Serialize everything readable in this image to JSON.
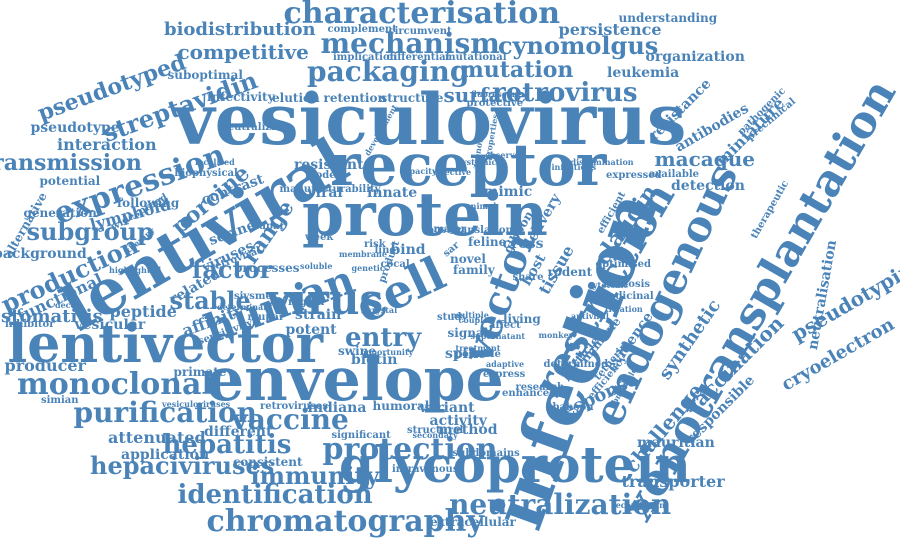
{
  "colors": {
    "word": "#4a83b8",
    "background": "#ffffff"
  },
  "words": [
    "vesiculovirus",
    "infection",
    "lentiviral",
    "protein",
    "receptor",
    "envelope",
    "lentivector",
    "glycoprotein",
    "xenotransplantation",
    "cell",
    "virus",
    "human",
    "vector",
    "endogenous",
    "restriction",
    "characterisation",
    "mechanism",
    "packaging",
    "expression",
    "monoclonal",
    "purification",
    "chromatography",
    "neutralization",
    "protection",
    "vaccine",
    "entry",
    "identification",
    "immunity",
    "hepaciviruses",
    "hepatitis",
    "transmission",
    "subgroup",
    "production",
    "stable",
    "factor",
    "range",
    "porcine",
    "streptavidin",
    "retrovirus",
    "mutation",
    "surface",
    "cynomolgus",
    "competitive",
    "biodistribution",
    "pseudotyped",
    "pseudotype",
    "interaction",
    "stomatitis",
    "functional",
    "peptide",
    "affinity",
    "vesicular",
    "producer",
    "background",
    "generation",
    "lymphoid",
    "subgroup",
    "attenuated",
    "application",
    "different",
    "consistent",
    "indiana",
    "primate",
    "viral",
    "innate",
    "mimic",
    "cross",
    "spike",
    "biotin",
    "signal",
    "activity",
    "method",
    "variant",
    "humoral",
    "transporter",
    "recombinant",
    "extracellular",
    "challenge",
    "vaccination",
    "response",
    "claudin",
    "tissue",
    "host",
    "delivery",
    "gibbon",
    "macaque",
    "detection",
    "resistance",
    "antibodies",
    "miniature",
    "pathogenic",
    "preclinical",
    "neutralisation",
    "therapeutic",
    "cryoelectron",
    "pseudotyping",
    "responsible",
    "mauritian",
    "evidence",
    "synthetic",
    "particle",
    "immune",
    "tetherin",
    "rodent",
    "persistence",
    "understanding",
    "organization",
    "leukemia",
    "circumvent",
    "complement",
    "implication",
    "differential",
    "mutational",
    "suboptimal",
    "infectivity",
    "elution",
    "retention",
    "structure",
    "protective",
    "fluorescent",
    "strain",
    "potent",
    "region",
    "swine",
    "feline",
    "novel",
    "baboon",
    "share",
    "living",
    "study",
    "affect",
    "multiple",
    "related",
    "viruses",
    "serine",
    "resistant",
    "model",
    "manufacturability",
    "alternative",
    "potential",
    "following",
    "widespread",
    "contrast",
    "biophysical",
    "localised",
    "neutralizing",
    "inhibitor",
    "sensitivity",
    "determinant",
    "decoy",
    "week",
    "risk",
    "line",
    "cocal",
    "sar",
    "bind",
    "family",
    "posttranslational",
    "zoonotic",
    "zoonosis",
    "medicinal",
    "titration",
    "optimised",
    "expressed",
    "available",
    "efficient",
    "determined",
    "research",
    "enhanced",
    "efficiency",
    "structural",
    "subdomains",
    "intravenous",
    "significant",
    "retroviruses",
    "vesiculoviruses",
    "simian",
    "processes",
    "sivsme",
    "mupar",
    "hupar",
    "major",
    "possible",
    "adaptive",
    "express",
    "opportunity",
    "secondary",
    "product",
    "capacity",
    "systemic",
    "effective",
    "crystal",
    "genetic",
    "soluble",
    "observed",
    "infectious",
    "dissemination",
    "based",
    "retroviral",
    "membrane",
    "highlighted",
    "therapy",
    "treatment",
    "cytotoxic",
    "monkey",
    "coupled",
    "antiviral",
    "supernatant",
    "development",
    "properties",
    "broad",
    "complex",
    "animal"
  ]
}
